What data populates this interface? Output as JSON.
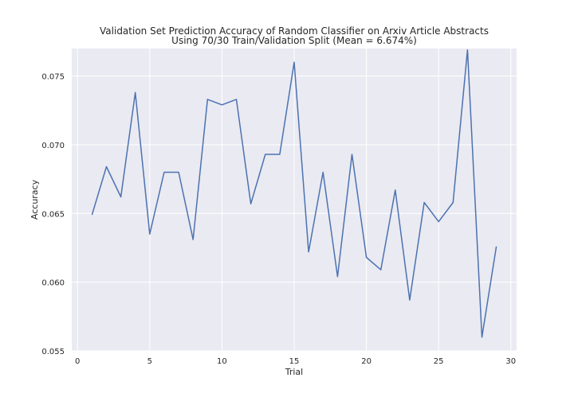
{
  "chart_data": {
    "type": "line",
    "title": "Validation Set Prediction Accuracy of Random Classifier on Arxiv Article Abstracts",
    "subtitle": "Using 70/30 Train/Validation Split (Mean = 6.674%)",
    "xlabel": "Trial",
    "ylabel": "Accuracy",
    "xlim": [
      -0.4,
      30.4
    ],
    "ylim": [
      0.055,
      0.077
    ],
    "xticks": [
      0,
      5,
      10,
      15,
      20,
      25,
      30
    ],
    "yticks": [
      0.055,
      0.06,
      0.065,
      0.07,
      0.075
    ],
    "xtick_labels": [
      "0",
      "5",
      "10",
      "15",
      "20",
      "25",
      "30"
    ],
    "ytick_labels": [
      "0.055",
      "0.060",
      "0.065",
      "0.070",
      "0.075"
    ],
    "grid": true,
    "colors": {
      "line": "#4c72b0",
      "plot_background": "#eaeaf2",
      "grid": "#ffffff"
    },
    "series": [
      {
        "x": [
          1,
          2,
          3,
          4,
          5,
          6,
          7,
          8,
          9,
          10,
          11,
          12,
          13,
          14,
          15,
          16,
          17,
          18,
          19,
          20,
          21,
          22,
          23,
          24,
          25,
          26,
          27,
          28,
          29
        ],
        "values": [
          0.0649,
          0.0684,
          0.0662,
          0.0738,
          0.0635,
          0.068,
          0.068,
          0.0631,
          0.0733,
          0.0729,
          0.0733,
          0.0657,
          0.0693,
          0.0693,
          0.076,
          0.0622,
          0.068,
          0.0604,
          0.0693,
          0.0618,
          0.0609,
          0.0667,
          0.0587,
          0.0658,
          0.0644,
          0.0658,
          0.0769,
          0.056,
          0.0626
        ]
      }
    ]
  }
}
